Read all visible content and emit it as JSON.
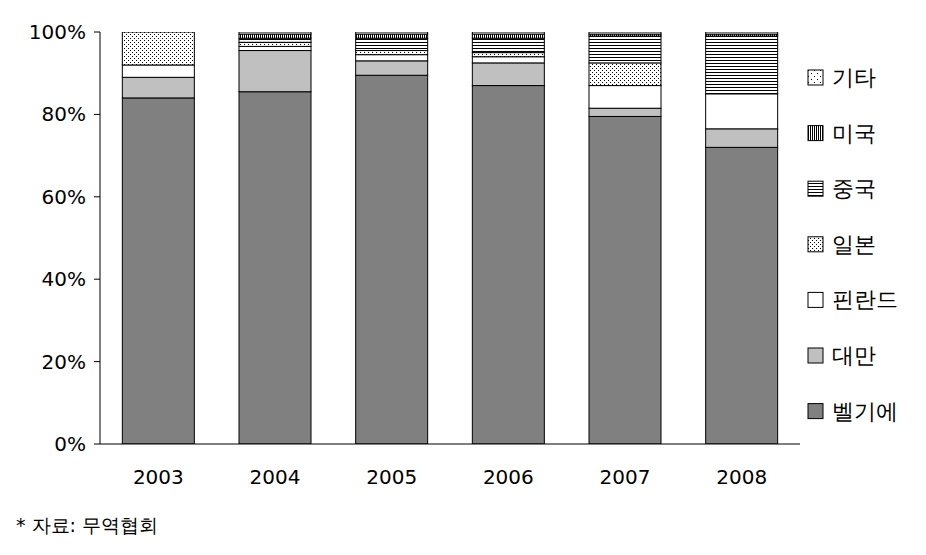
{
  "chart_data": {
    "type": "bar",
    "stacked": true,
    "annotations": [
      "* 자료: 무역협회"
    ],
    "categories": [
      "2003",
      "2004",
      "2005",
      "2006",
      "2007",
      "2008"
    ],
    "series": [
      {
        "name": "벨기에",
        "color": "#808080",
        "values": [
          84,
          85.5,
          89.5,
          87,
          79.5,
          72
        ]
      },
      {
        "name": "대만",
        "color": "#c0c0c0",
        "values": [
          5,
          10,
          3.5,
          5.5,
          2,
          4.5
        ]
      },
      {
        "name": "핀란드",
        "color": "#ffffff",
        "values": [
          3,
          1,
          1.5,
          1.5,
          5.5,
          8.5
        ]
      },
      {
        "name": "일본",
        "color": "#ffffff",
        "values": [
          8,
          1,
          1,
          1,
          5.5,
          0
        ]
      },
      {
        "name": "중국",
        "color": "#ffffff",
        "values": [
          0,
          1,
          3,
          3.5,
          6.5,
          14
        ]
      },
      {
        "name": "미국",
        "color": "#ffffff",
        "values": [
          0,
          1,
          1,
          1,
          0.5,
          0.5
        ]
      },
      {
        "name": "기타",
        "color": "#ffffff",
        "values": [
          0,
          0.5,
          0.5,
          0.5,
          0.5,
          0.5
        ]
      }
    ],
    "ylim": [
      0,
      100
    ],
    "yticks": [
      {
        "value": 0,
        "label": "0%"
      },
      {
        "value": 20,
        "label": "20%"
      },
      {
        "value": 40,
        "label": "40%"
      },
      {
        "value": 60,
        "label": "60%"
      },
      {
        "value": 80,
        "label": "80%"
      },
      {
        "value": 100,
        "label": "100%"
      }
    ],
    "legend": "right"
  }
}
